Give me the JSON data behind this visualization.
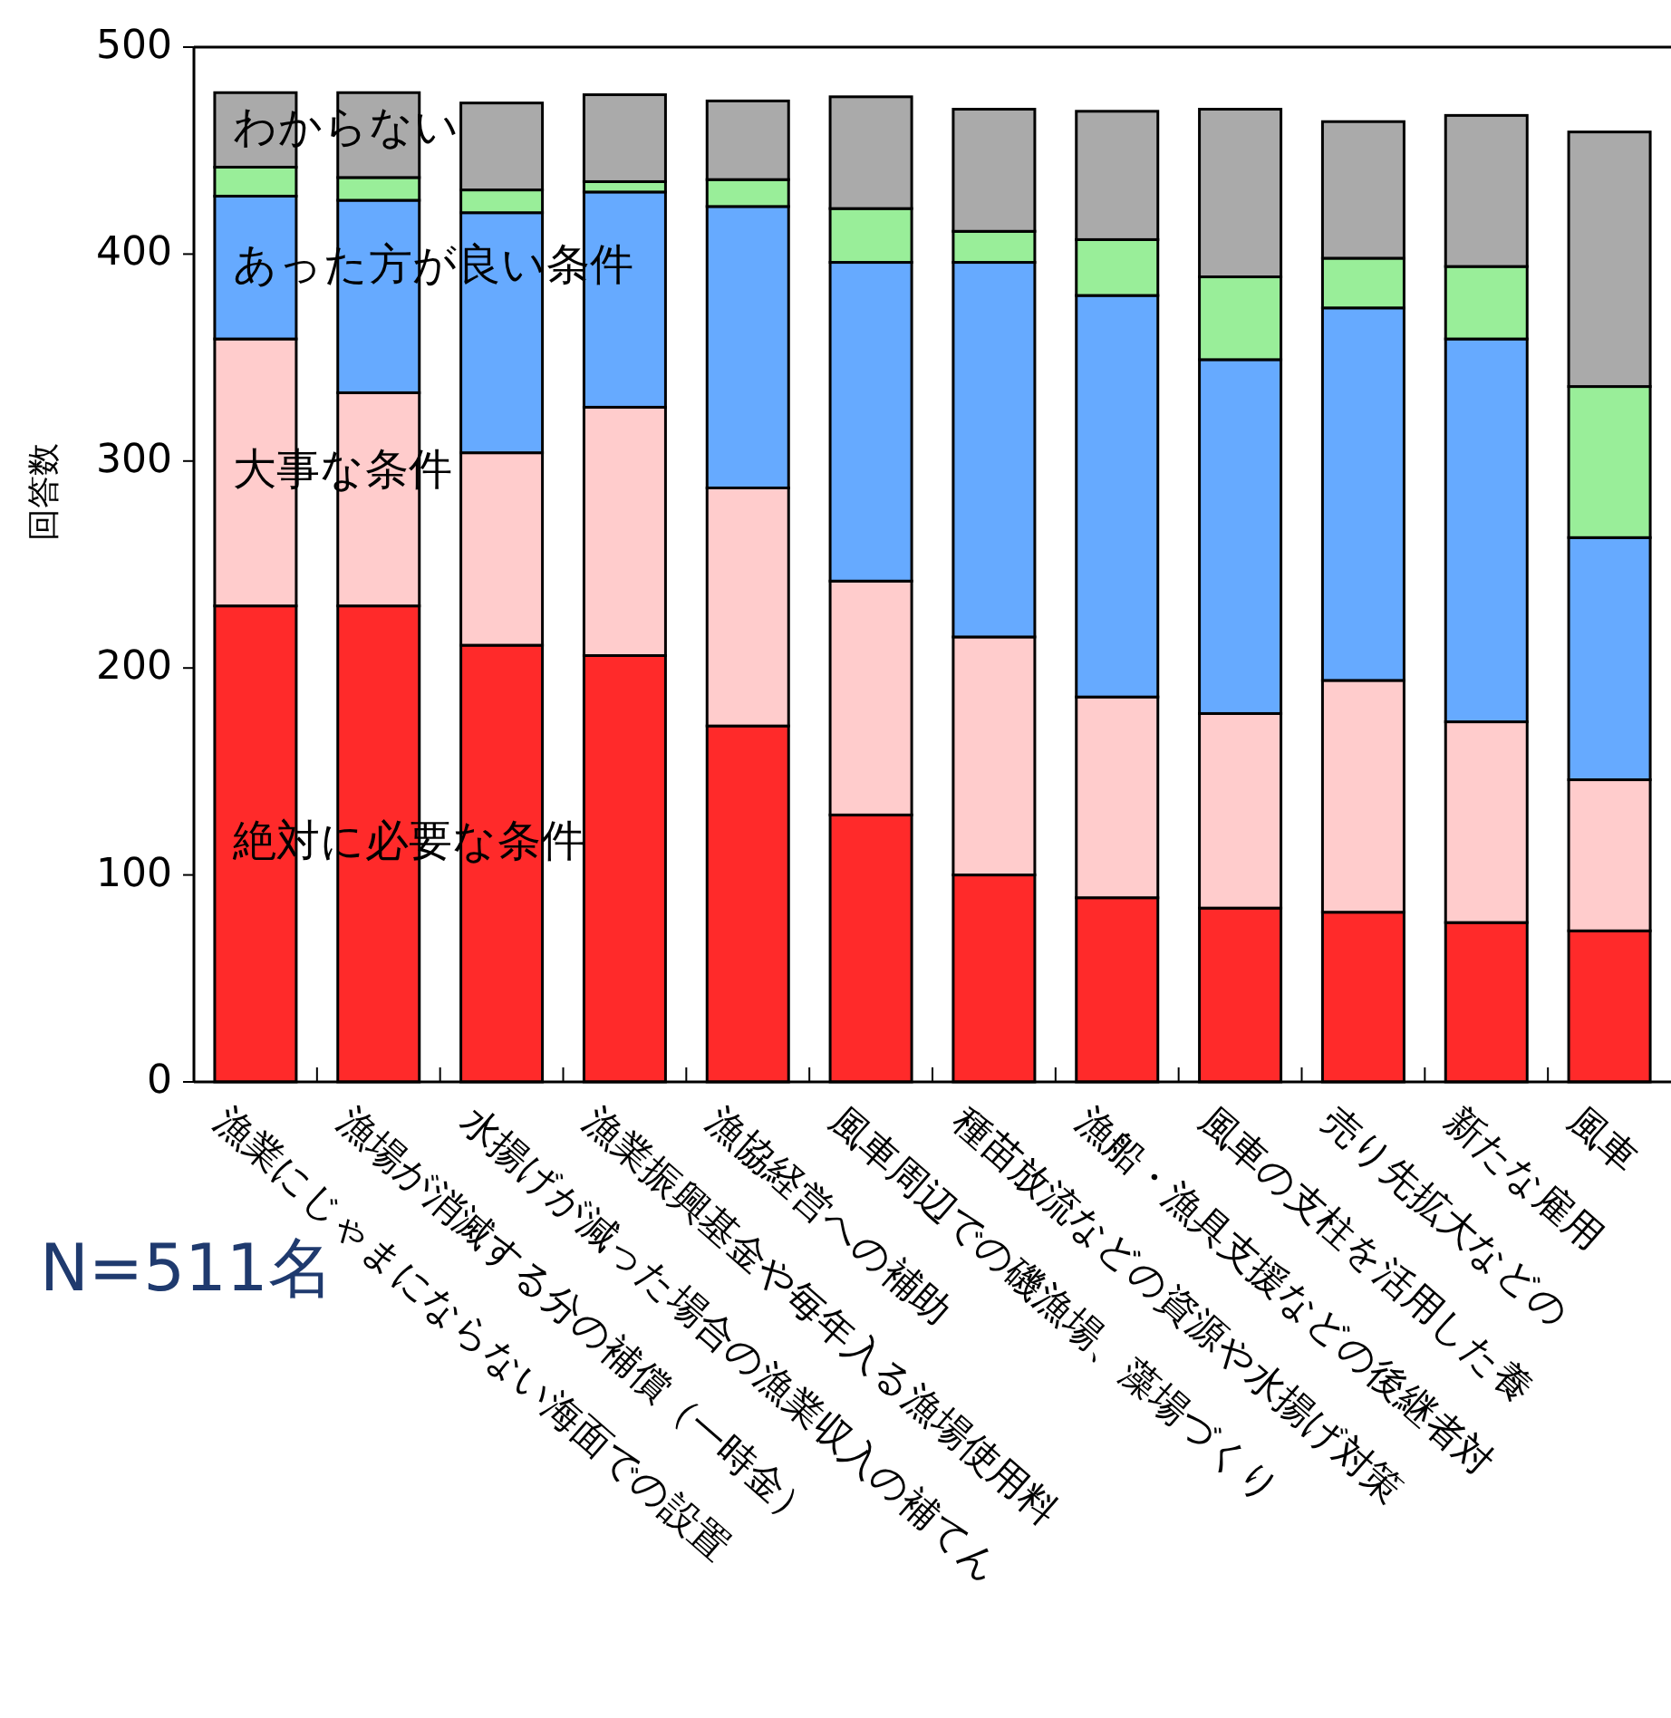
{
  "chart_data": {
    "type": "bar",
    "stacked": true,
    "ylabel": "回答数",
    "ylim": [
      0,
      500
    ],
    "yticks": [
      0,
      100,
      200,
      300,
      400,
      500
    ],
    "categories": [
      "漁業にじゃまにならない海面での設置",
      "漁場が消滅する分の補償（一時金）",
      "水揚げが減った場合の漁業収入の補てん",
      "漁業振興基金や毎年入る漁場使用料",
      "漁協経営への補助",
      "風車周辺での磯漁場、藻場づくり",
      "種苗放流などの資源や水揚げ対策",
      "漁船・漁具支援などの後継者対",
      "風車の支柱を活用した養",
      "売り先拡大などの",
      "新たな雇用",
      "風車"
    ],
    "series": [
      {
        "name": "絶対に必要な条件",
        "color": "#ff2a2a",
        "values": [
          230,
          230,
          211,
          206,
          172,
          129,
          100,
          89,
          84,
          82,
          77,
          73
        ]
      },
      {
        "name": "大事な条件",
        "color": "#ffcccc",
        "values": [
          129,
          103,
          93,
          120,
          115,
          113,
          115,
          97,
          94,
          112,
          97,
          73
        ]
      },
      {
        "name": "あった方が良い条件",
        "color": "#66aaff",
        "values": [
          69,
          93,
          116,
          104,
          136,
          154,
          181,
          194,
          171,
          180,
          185,
          117
        ]
      },
      {
        "color": "#99ee99",
        "values": [
          14,
          11,
          11,
          5,
          13,
          26,
          15,
          27,
          40,
          24,
          35,
          73
        ]
      },
      {
        "name": "わからない",
        "color": "#aaaaaa",
        "values": [
          36,
          41,
          42,
          42,
          38,
          54,
          59,
          62,
          81,
          66,
          73,
          123
        ]
      }
    ],
    "annotations": [
      "N=511名"
    ]
  }
}
